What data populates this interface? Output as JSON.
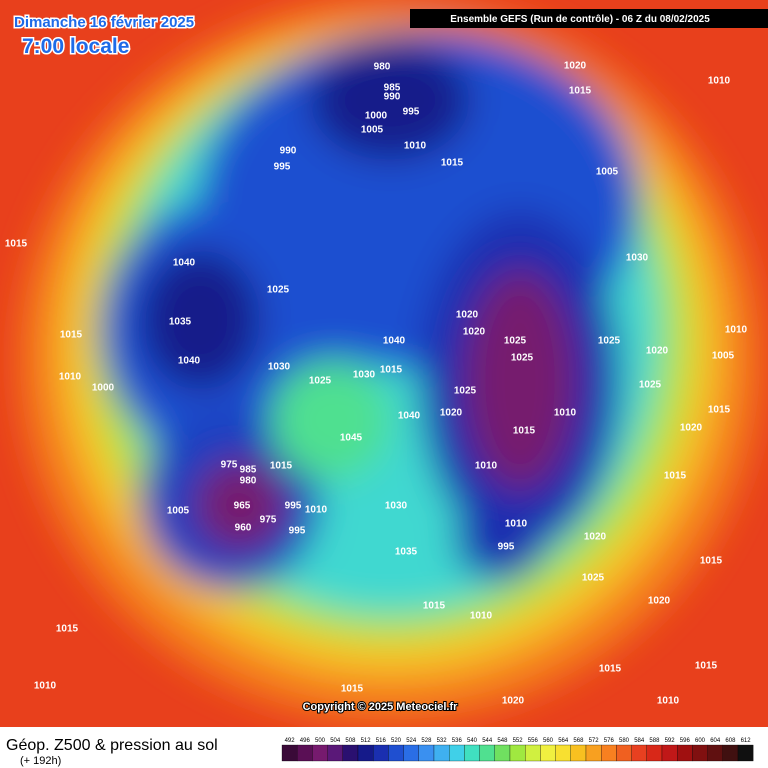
{
  "header": {
    "date": "Dimanche 16 février 2025",
    "time": "7:00 locale",
    "run": "Ensemble GEFS  (Run de contrôle)  -  06 Z du 08/02/2025",
    "copyright": "Copyright © 2025 Meteociel.fr"
  },
  "footer": {
    "title": "Géop. Z500 & pression au sol",
    "lead": "(+ 192h)"
  },
  "colorbar": {
    "values": [
      492,
      496,
      500,
      504,
      508,
      512,
      516,
      520,
      524,
      528,
      532,
      536,
      540,
      544,
      548,
      552,
      556,
      560,
      564,
      568,
      572,
      576,
      580,
      584,
      588,
      592,
      596,
      600,
      604,
      608,
      612
    ],
    "colors": [
      "#3a0a38",
      "#5a0f55",
      "#761a6e",
      "#5a1878",
      "#2a1070",
      "#151a8a",
      "#1a2fb0",
      "#1f4fd0",
      "#2a6ee6",
      "#3a90f0",
      "#3fb0f0",
      "#40d0e8",
      "#40e0c0",
      "#50e090",
      "#70e060",
      "#a0e840",
      "#d0f040",
      "#f0f040",
      "#f8e030",
      "#f8c020",
      "#f8a020",
      "#f88020",
      "#f06020",
      "#e84020",
      "#d82818",
      "#c01818",
      "#a01010",
      "#801010",
      "#601010",
      "#401010",
      "#101010"
    ]
  },
  "pressure_labels": [
    980,
    985,
    990,
    995,
    1000,
    1005,
    1010,
    1015,
    990,
    995,
    1020,
    1015,
    1010,
    1005,
    1030,
    1040,
    1035,
    1040,
    1025,
    1015,
    1010,
    1000,
    1030,
    1025,
    1030,
    1015,
    1040,
    1020,
    1020,
    1025,
    1025,
    1025,
    1020,
    1010,
    1015,
    1010,
    1040,
    1045,
    975,
    985,
    980,
    1015,
    965,
    960,
    975,
    995,
    1010,
    995,
    1005,
    1030,
    1035,
    1010,
    995,
    1020,
    1025,
    1020,
    1015,
    1015,
    1010,
    1015,
    1015,
    1010,
    1015,
    1010,
    1015,
    1020,
    1025,
    1020,
    1025,
    1005,
    1010,
    1015,
    1020,
    1015,
    1015
  ]
}
